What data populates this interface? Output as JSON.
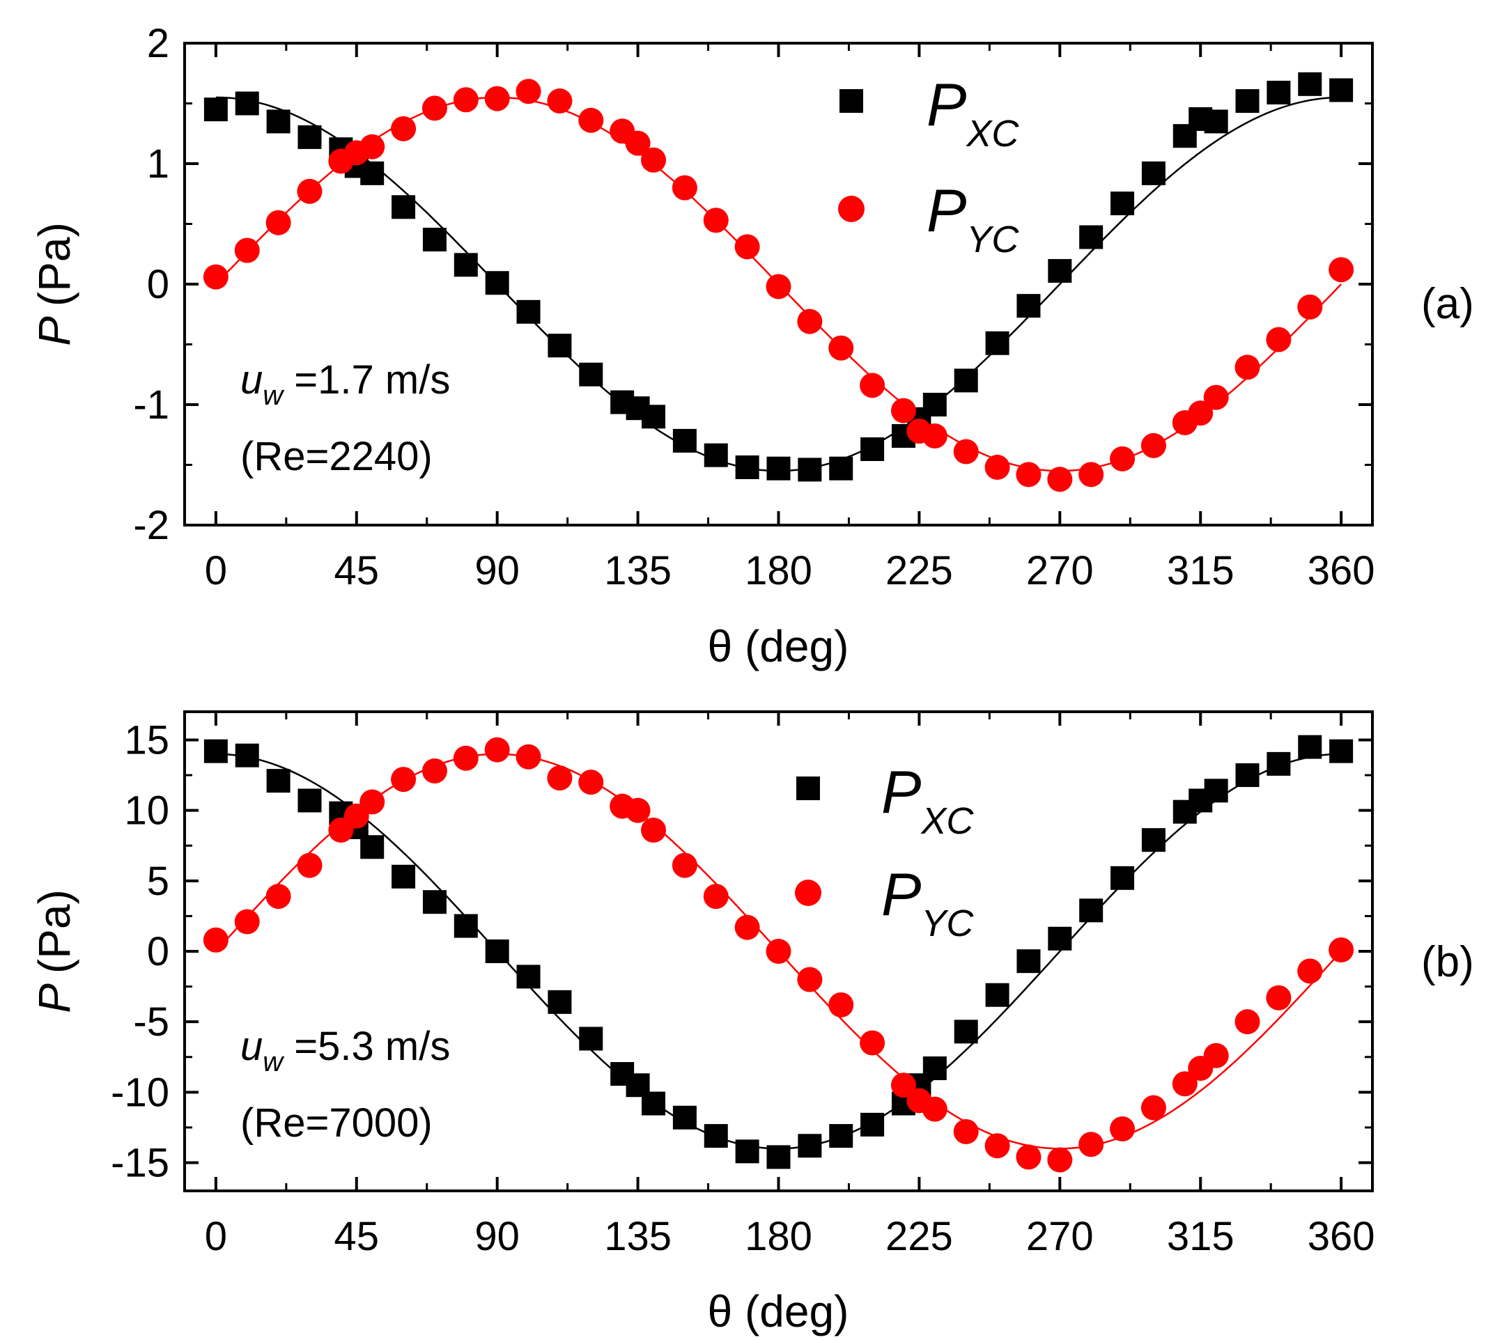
{
  "chart_data": [
    {
      "type": "scatter",
      "panel_label": "(a)",
      "xlabel": "θ (deg)",
      "ylabel": {
        "var": "P",
        "unit": "(Pa)"
      },
      "xlim": [
        -10,
        370
      ],
      "ylim": [
        -2,
        2
      ],
      "xticks": [
        0,
        45,
        90,
        135,
        180,
        225,
        270,
        315,
        360
      ],
      "yticks": [
        -2,
        -1,
        0,
        1,
        2
      ],
      "ytick_labels": [
        "-2",
        "-1",
        "0",
        "1",
        "2"
      ],
      "annotation": {
        "var": "u",
        "sub": "w",
        "text": " =1.7 m/s",
        "line2": "(Re=2240)"
      },
      "legend_position": "top-right",
      "series": [
        {
          "name": "P",
          "name_sub": "XC",
          "marker": "square",
          "color": "#000000",
          "x": [
            0,
            10,
            20,
            30,
            40,
            45,
            50,
            60,
            70,
            80,
            90,
            100,
            110,
            120,
            130,
            135,
            140,
            150,
            160,
            170,
            180,
            190,
            200,
            210,
            220,
            225,
            230,
            240,
            250,
            260,
            270,
            280,
            290,
            300,
            310,
            315,
            320,
            330,
            340,
            350,
            360
          ],
          "y": [
            1.45,
            1.5,
            1.35,
            1.22,
            1.12,
            0.98,
            0.92,
            0.64,
            0.37,
            0.16,
            0.01,
            -0.23,
            -0.51,
            -0.75,
            -0.98,
            -1.03,
            -1.1,
            -1.3,
            -1.42,
            -1.52,
            -1.53,
            -1.54,
            -1.53,
            -1.37,
            -1.26,
            -1.12,
            -1.0,
            -0.8,
            -0.49,
            -0.18,
            0.11,
            0.39,
            0.67,
            0.92,
            1.23,
            1.37,
            1.35,
            1.52,
            1.59,
            1.66,
            1.61
          ],
          "fit": {
            "amplitude": 1.55,
            "function": "cos"
          }
        },
        {
          "name": "P",
          "name_sub": "YC",
          "marker": "circle",
          "color": "#ff0000",
          "x": [
            0,
            10,
            20,
            30,
            40,
            45,
            50,
            60,
            70,
            80,
            90,
            100,
            110,
            120,
            130,
            135,
            140,
            150,
            160,
            170,
            180,
            190,
            200,
            210,
            220,
            225,
            230,
            240,
            250,
            260,
            270,
            280,
            290,
            300,
            310,
            315,
            320,
            330,
            340,
            350,
            360
          ],
          "y": [
            0.06,
            0.28,
            0.51,
            0.77,
            1.02,
            1.09,
            1.14,
            1.29,
            1.46,
            1.53,
            1.54,
            1.6,
            1.52,
            1.36,
            1.27,
            1.17,
            1.03,
            0.8,
            0.53,
            0.31,
            -0.02,
            -0.31,
            -0.53,
            -0.84,
            -1.05,
            -1.22,
            -1.26,
            -1.39,
            -1.52,
            -1.58,
            -1.62,
            -1.58,
            -1.45,
            -1.34,
            -1.15,
            -1.07,
            -0.94,
            -0.69,
            -0.46,
            -0.19,
            0.12
          ],
          "fit": {
            "amplitude": 1.55,
            "function": "sin"
          }
        }
      ]
    },
    {
      "type": "scatter",
      "panel_label": "(b)",
      "xlabel": "θ (deg)",
      "ylabel": {
        "var": "P",
        "unit": "(Pa)"
      },
      "xlim": [
        -10,
        370
      ],
      "ylim": [
        -17,
        17
      ],
      "xticks": [
        0,
        45,
        90,
        135,
        180,
        225,
        270,
        315,
        360
      ],
      "yticks": [
        -15,
        -10,
        -5,
        0,
        5,
        10,
        15
      ],
      "ytick_labels": [
        "-15",
        "-10",
        "-5",
        "0",
        "5",
        "10",
        "15"
      ],
      "annotation": {
        "var": "u",
        "sub": "w",
        "text": " =5.3 m/s",
        "line2": "(Re=7000)"
      },
      "legend_position": "top-right",
      "series": [
        {
          "name": "P",
          "name_sub": "XC",
          "marker": "square",
          "color": "#000000",
          "x": [
            0,
            10,
            20,
            30,
            40,
            45,
            50,
            60,
            70,
            80,
            90,
            100,
            110,
            120,
            130,
            135,
            140,
            150,
            160,
            170,
            180,
            190,
            200,
            210,
            220,
            225,
            230,
            240,
            250,
            260,
            270,
            280,
            290,
            300,
            310,
            315,
            320,
            330,
            340,
            350,
            360
          ],
          "y": [
            14.2,
            13.9,
            12.1,
            10.7,
            9.8,
            8.8,
            7.4,
            5.3,
            3.5,
            1.8,
            0.0,
            -1.8,
            -3.6,
            -6.2,
            -8.7,
            -9.5,
            -10.8,
            -11.8,
            -13.1,
            -14.2,
            -14.6,
            -13.8,
            -13.1,
            -12.3,
            -10.8,
            -9.5,
            -8.3,
            -5.7,
            -3.1,
            -0.7,
            0.9,
            2.9,
            5.2,
            7.9,
            9.9,
            10.7,
            11.4,
            12.5,
            13.3,
            14.5,
            14.2
          ],
          "fit": {
            "amplitude": 14.0,
            "function": "cos"
          }
        },
        {
          "name": "P",
          "name_sub": "YC",
          "marker": "circle",
          "color": "#ff0000",
          "x": [
            0,
            10,
            20,
            30,
            40,
            45,
            50,
            60,
            70,
            80,
            90,
            100,
            110,
            120,
            130,
            135,
            140,
            150,
            160,
            170,
            180,
            190,
            200,
            210,
            220,
            225,
            230,
            240,
            250,
            260,
            270,
            280,
            290,
            300,
            310,
            315,
            320,
            330,
            340,
            350,
            360
          ],
          "y": [
            0.8,
            2.1,
            3.9,
            6.1,
            8.6,
            9.6,
            10.6,
            12.2,
            12.8,
            13.7,
            14.3,
            13.8,
            12.3,
            12.0,
            10.3,
            10.0,
            8.6,
            6.1,
            3.9,
            1.7,
            0.0,
            -2.0,
            -3.8,
            -6.5,
            -9.5,
            -10.6,
            -11.2,
            -12.8,
            -13.8,
            -14.6,
            -14.8,
            -13.7,
            -12.6,
            -11.1,
            -9.4,
            -8.3,
            -7.4,
            -5.0,
            -3.3,
            -1.4,
            0.1
          ],
          "fit": {
            "amplitude": 14.0,
            "function": "sin"
          }
        }
      ]
    }
  ]
}
